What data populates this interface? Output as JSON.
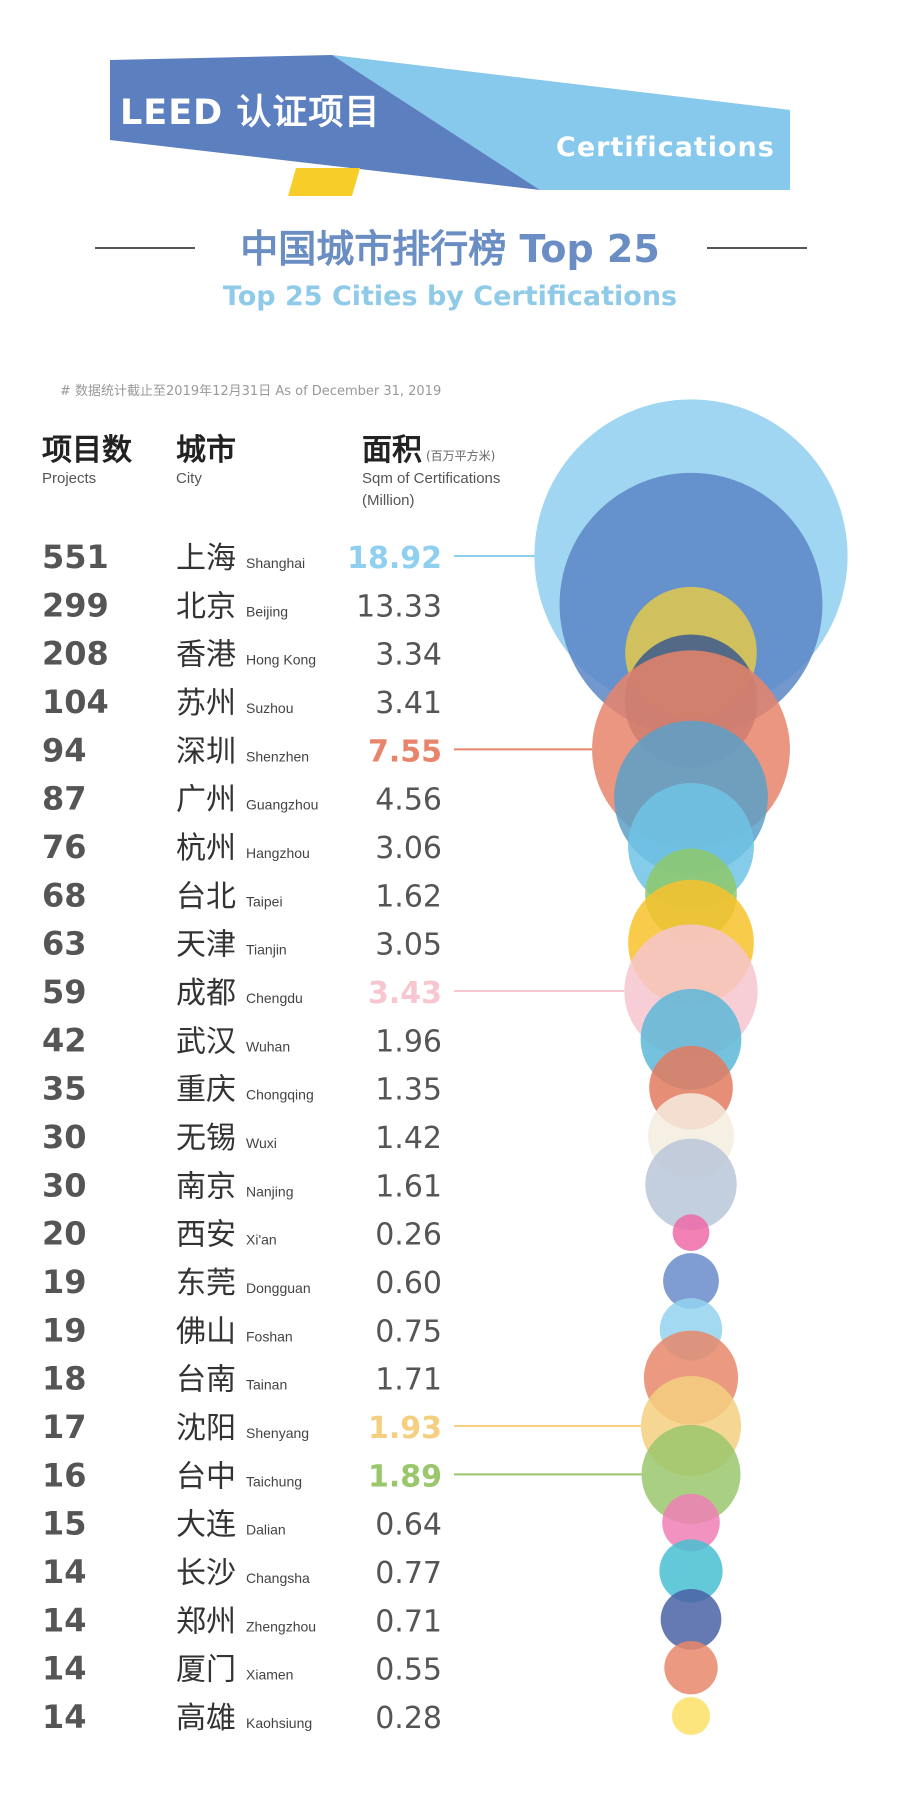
{
  "banner": {
    "title_cn": "LEED 认证项目",
    "title_en": "Certifications",
    "colors": {
      "dark_blue": "#5b7fbf",
      "light_blue": "#87c9ec",
      "grey": "#dddddd",
      "yellow": "#f7cd2a"
    }
  },
  "title": {
    "cn": "中国城市排行榜 Top 25",
    "en": "Top 25 Cities by Certifications"
  },
  "note": "# 数据统计截止至2019年12月31日 As of December 31, 2019",
  "headers": {
    "projects_cn": "项目数",
    "projects_en": "Projects",
    "city_cn": "城市",
    "city_en": "City",
    "area_cn": "面积",
    "area_unit": "(百万平方米)",
    "area_en_1": "Sqm of Certifications",
    "area_en_2": "(Million)"
  },
  "chart_data": {
    "type": "table",
    "columns": [
      "Projects",
      "City",
      "Sqm of Certifications (Million)"
    ],
    "rows": [
      {
        "projects": 551,
        "city_cn": "上海",
        "city_en": "Shanghai",
        "area": "18.92",
        "color": "#8fcff0",
        "highlight": true
      },
      {
        "projects": 299,
        "city_cn": "北京",
        "city_en": "Beijing",
        "area": "13.33",
        "color": "#5b86c6",
        "highlight": false
      },
      {
        "projects": 208,
        "city_cn": "香港",
        "city_en": "Hong Kong",
        "area": "3.34",
        "color": "#e3c94a",
        "highlight": false
      },
      {
        "projects": 104,
        "city_cn": "苏州",
        "city_en": "Suzhou",
        "area": "3.41",
        "color": "#3d5a8e",
        "highlight": false
      },
      {
        "projects": 94,
        "city_cn": "深圳",
        "city_en": "Shenzhen",
        "area": "7.55",
        "color": "#e8846a",
        "highlight": true
      },
      {
        "projects": 87,
        "city_cn": "广州",
        "city_en": "Guangzhou",
        "area": "4.56",
        "color": "#5aa0c8",
        "highlight": false
      },
      {
        "projects": 76,
        "city_cn": "杭州",
        "city_en": "Hangzhou",
        "area": "3.06",
        "color": "#6ec3e5",
        "highlight": false
      },
      {
        "projects": 68,
        "city_cn": "台北",
        "city_en": "Taipei",
        "area": "1.62",
        "color": "#8dc86a",
        "highlight": false
      },
      {
        "projects": 63,
        "city_cn": "天津",
        "city_en": "Tianjin",
        "area": "3.05",
        "color": "#f8c22a",
        "highlight": false
      },
      {
        "projects": 59,
        "city_cn": "成都",
        "city_en": "Chengdu",
        "area": "3.43",
        "color": "#f7c6cf",
        "highlight": true
      },
      {
        "projects": 42,
        "city_cn": "武汉",
        "city_en": "Wuhan",
        "area": "1.96",
        "color": "#5db7d8",
        "highlight": false
      },
      {
        "projects": 35,
        "city_cn": "重庆",
        "city_en": "Chongqing",
        "area": "1.35",
        "color": "#e37a5e",
        "highlight": false
      },
      {
        "projects": 30,
        "city_cn": "无锡",
        "city_en": "Wuxi",
        "area": "1.42",
        "color": "#f4ecdf",
        "highlight": false
      },
      {
        "projects": 30,
        "city_cn": "南京",
        "city_en": "Nanjing",
        "area": "1.61",
        "color": "#b8c5d8",
        "highlight": false
      },
      {
        "projects": 20,
        "city_cn": "西安",
        "city_en": "Xi'an",
        "area": "0.26",
        "color": "#ef6aa8",
        "highlight": false
      },
      {
        "projects": 19,
        "city_cn": "东莞",
        "city_en": "Dongguan",
        "area": "0.60",
        "color": "#6a8ccb",
        "highlight": false
      },
      {
        "projects": 19,
        "city_cn": "佛山",
        "city_en": "Foshan",
        "area": "0.75",
        "color": "#93d3ef",
        "highlight": false
      },
      {
        "projects": 18,
        "city_cn": "台南",
        "city_en": "Tainan",
        "area": "1.71",
        "color": "#e8876a",
        "highlight": false
      },
      {
        "projects": 17,
        "city_cn": "沈阳",
        "city_en": "Shenyang",
        "area": "1.93",
        "color": "#f5cf80",
        "highlight": true
      },
      {
        "projects": 16,
        "city_cn": "台中",
        "city_en": "Taichung",
        "area": "1.89",
        "color": "#9ac76c",
        "highlight": true
      },
      {
        "projects": 15,
        "city_cn": "大连",
        "city_en": "Dalian",
        "area": "0.64",
        "color": "#f07fb5",
        "highlight": false
      },
      {
        "projects": 14,
        "city_cn": "长沙",
        "city_en": "Changsha",
        "area": "0.77",
        "color": "#48bfd2",
        "highlight": false
      },
      {
        "projects": 14,
        "city_cn": "郑州",
        "city_en": "Zhengzhou",
        "area": "0.71",
        "color": "#4a62a4",
        "highlight": false
      },
      {
        "projects": 14,
        "city_cn": "厦门",
        "city_en": "Xiamen",
        "area": "0.55",
        "color": "#e8876a",
        "highlight": false
      },
      {
        "projects": 14,
        "city_cn": "高雄",
        "city_en": "Kaohsiung",
        "area": "0.28",
        "color": "#fbe066",
        "highlight": false
      }
    ]
  }
}
